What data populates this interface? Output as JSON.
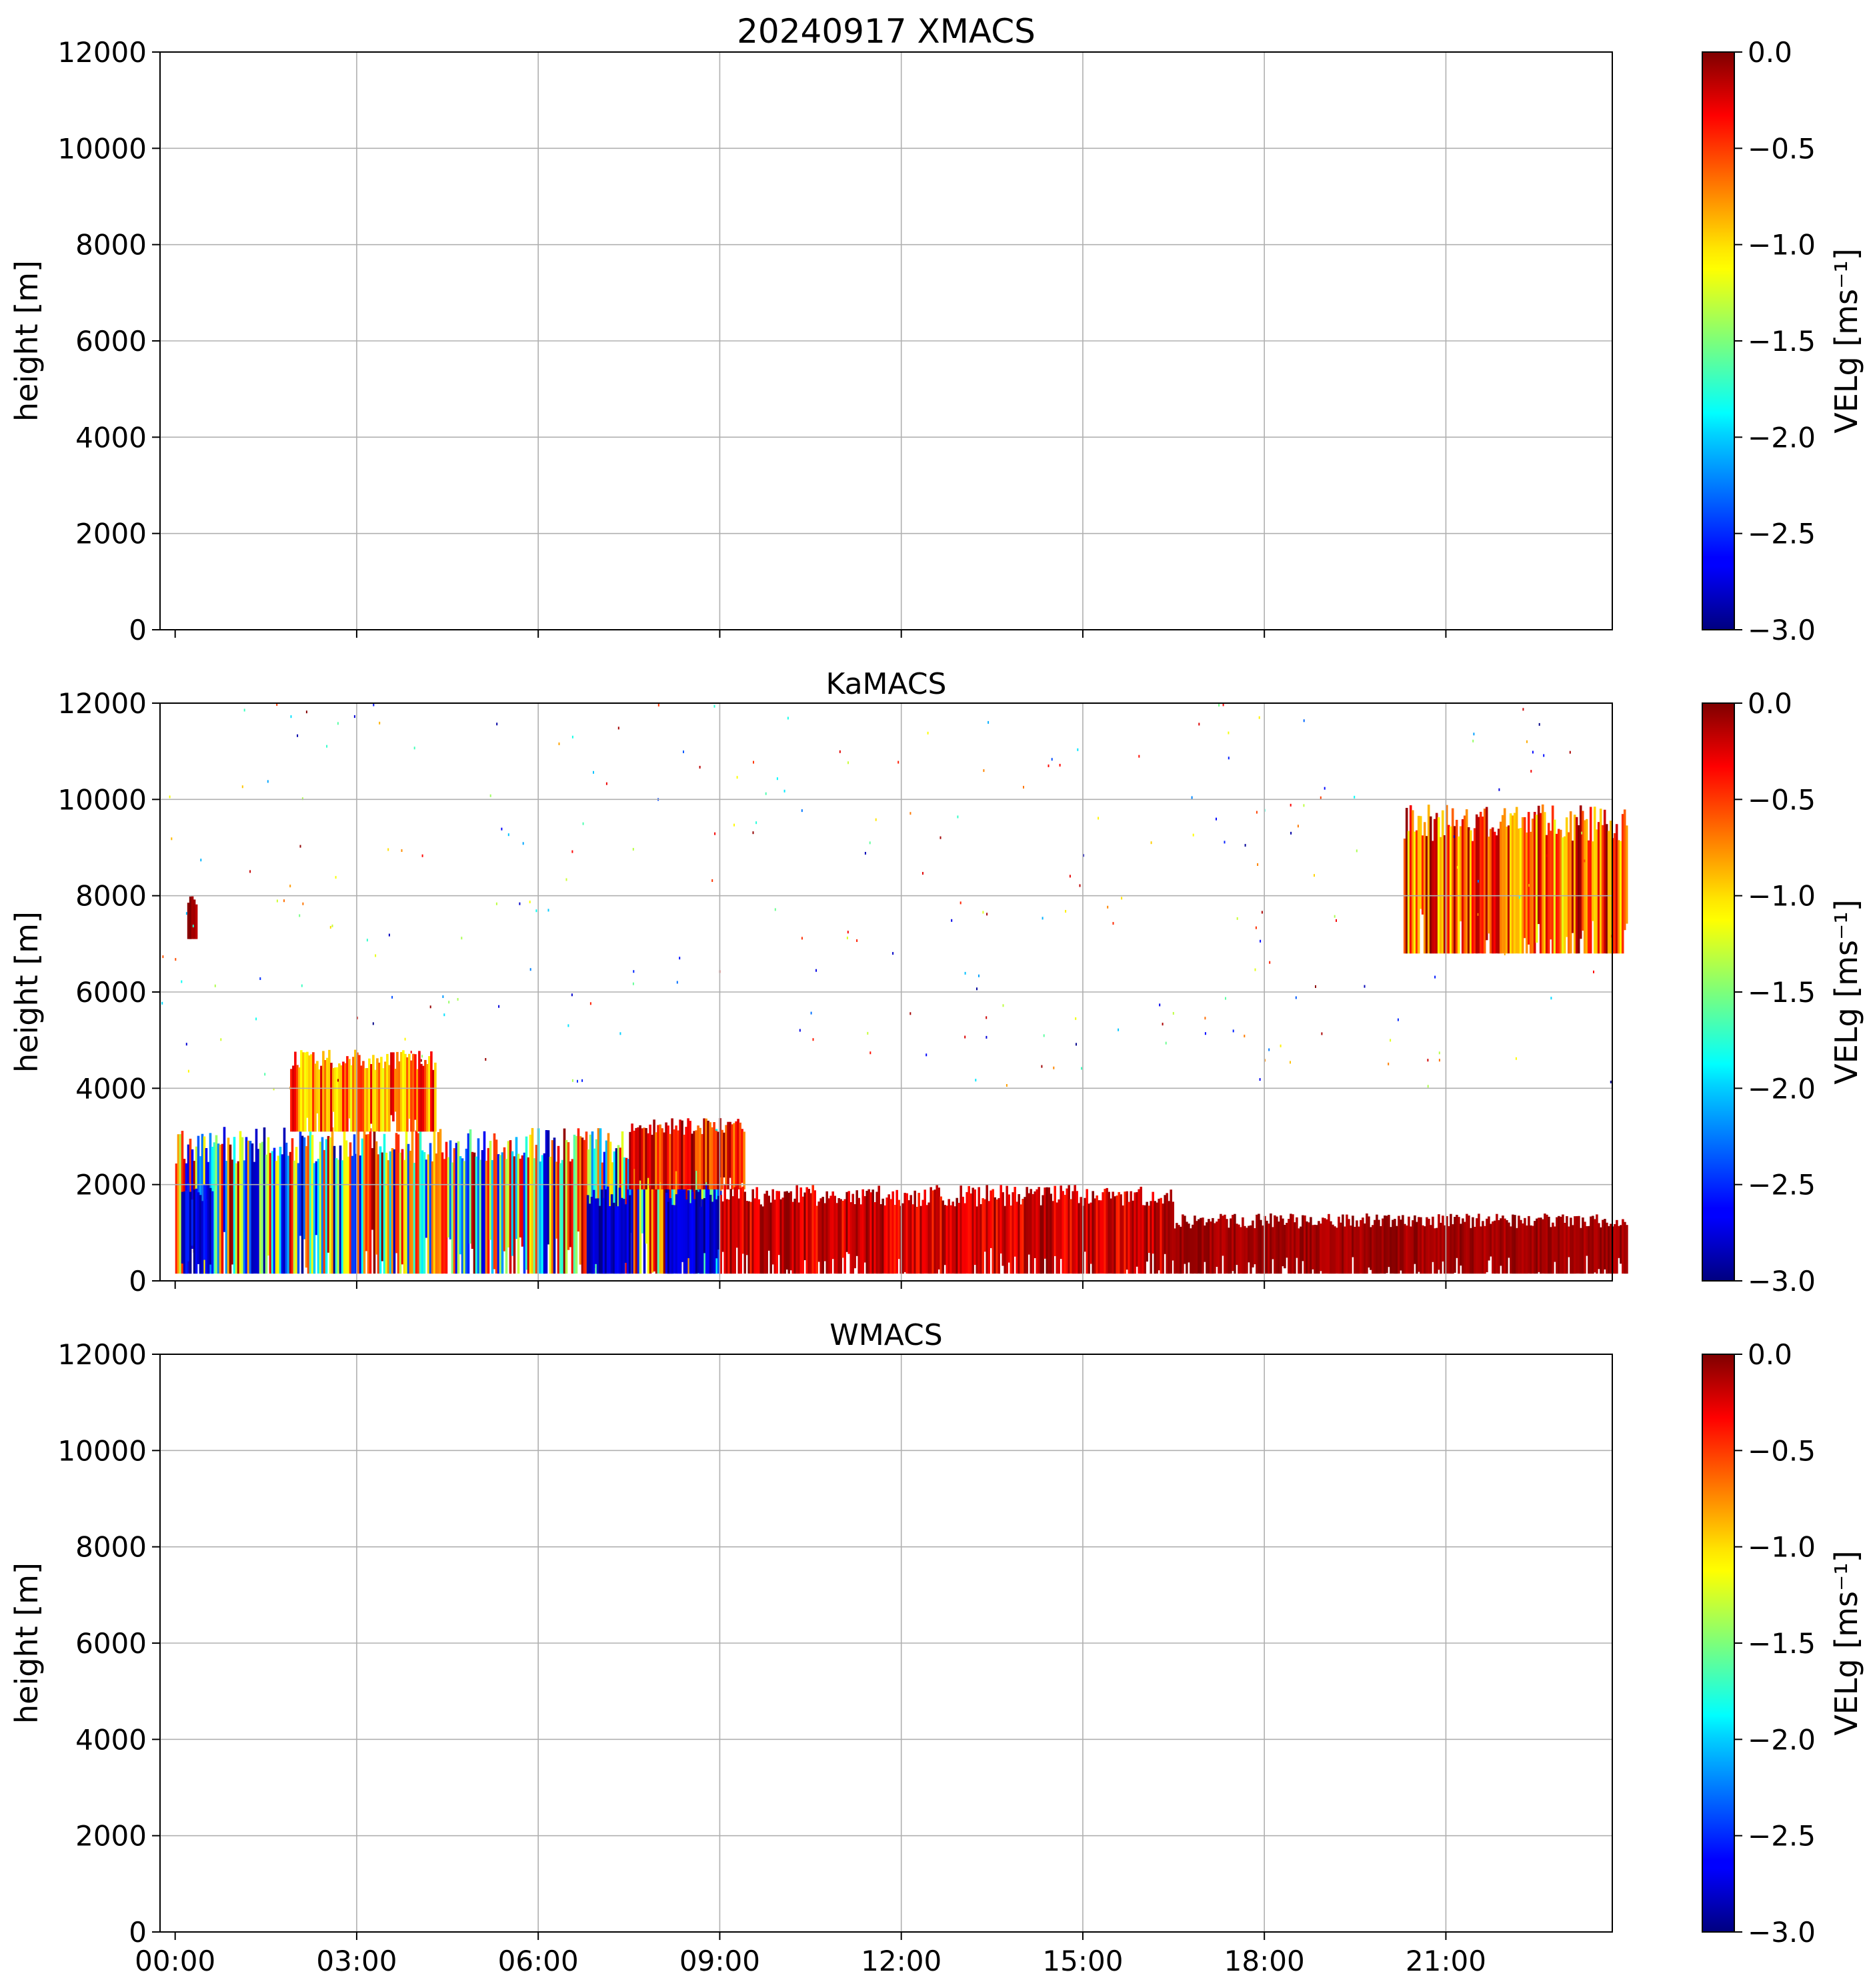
{
  "chart_data": [
    {
      "type": "heatmap",
      "title": "20240917 XMACS",
      "xlabel": "",
      "ylabel": "height [m]",
      "ylim": [
        0,
        12000
      ],
      "yticks": [
        "0",
        "2000",
        "4000",
        "6000",
        "8000",
        "10000",
        "12000"
      ],
      "xticks": [],
      "grid": true,
      "colorbar": {
        "label": "VELg [ms⁻¹]",
        "range": [
          -3.0,
          0.0
        ],
        "colormap": "jet",
        "ticks": [
          "−3.0",
          "−2.5",
          "−2.0",
          "−1.5",
          "−1.0",
          "−0.5",
          "0.0"
        ]
      },
      "echoes": []
    },
    {
      "type": "heatmap",
      "title": "KaMACS",
      "xlabel": "",
      "ylabel": "height [m]",
      "ylim": [
        0,
        12000
      ],
      "yticks": [
        "0",
        "2000",
        "4000",
        "6000",
        "8000",
        "10000",
        "12000"
      ],
      "xticks": [],
      "grid": true,
      "colorbar": {
        "label": "VELg [ms⁻¹]",
        "range": [
          -3.0,
          0.0
        ],
        "colormap": "jet",
        "ticks": [
          "−3.0",
          "−2.5",
          "−2.0",
          "−1.5",
          "−1.0",
          "−0.5",
          "0.0"
        ]
      },
      "echoes": [
        {
          "t0": 0.0,
          "t1": 9.0,
          "h0": 150,
          "h1": 3200,
          "vel_range": [
            -3.0,
            0.0
          ]
        },
        {
          "t0": 0.1,
          "t1": 0.6,
          "h0": 150,
          "h1": 2100,
          "vel_range": [
            -3.0,
            -2.5
          ]
        },
        {
          "t0": 1.9,
          "t1": 4.3,
          "h0": 3100,
          "h1": 4800,
          "vel_range": [
            -1.2,
            -0.2
          ]
        },
        {
          "t0": 0.2,
          "t1": 0.35,
          "h0": 7100,
          "h1": 8000,
          "vel_range": [
            -0.3,
            0.0
          ]
        },
        {
          "t0": 6.8,
          "t1": 7.5,
          "h0": 150,
          "h1": 2000,
          "vel_range": [
            -3.0,
            -2.6
          ]
        },
        {
          "t0": 8.1,
          "t1": 9.0,
          "h0": 150,
          "h1": 2000,
          "vel_range": [
            -3.0,
            -2.6
          ]
        },
        {
          "t0": 7.5,
          "t1": 9.4,
          "h0": 1900,
          "h1": 3400,
          "vel_range": [
            -0.8,
            0.0
          ]
        },
        {
          "t0": 9.0,
          "t1": 16.5,
          "h0": 150,
          "h1": 2000,
          "vel_range": [
            -0.5,
            0.0
          ]
        },
        {
          "t0": 16.5,
          "t1": 24.0,
          "h0": 150,
          "h1": 1400,
          "vel_range": [
            -0.2,
            0.0
          ]
        },
        {
          "t0": 20.3,
          "t1": 24.0,
          "h0": 6800,
          "h1": 9900,
          "vel_range": [
            -1.2,
            0.0
          ]
        }
      ]
    },
    {
      "type": "heatmap",
      "title": "WMACS",
      "xlabel": "",
      "ylabel": "height [m]",
      "ylim": [
        0,
        12000
      ],
      "yticks": [
        "0",
        "2000",
        "4000",
        "6000",
        "8000",
        "10000",
        "12000"
      ],
      "xticks": [
        "00:00",
        "03:00",
        "06:00",
        "09:00",
        "12:00",
        "15:00",
        "18:00",
        "21:00"
      ],
      "grid": true,
      "colorbar": {
        "label": "VELg [ms⁻¹]",
        "range": [
          -3.0,
          0.0
        ],
        "colormap": "jet",
        "ticks": [
          "−3.0",
          "−2.5",
          "−2.0",
          "−1.5",
          "−1.0",
          "−0.5",
          "0.0"
        ]
      },
      "echoes": []
    }
  ]
}
